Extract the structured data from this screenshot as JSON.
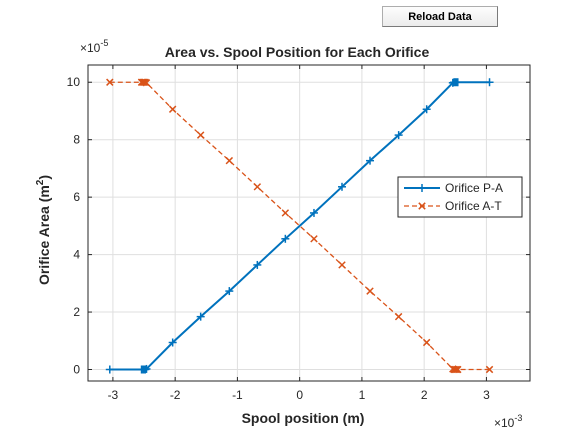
{
  "toolbar": {
    "reload_label": "Reload Data"
  },
  "chart_data": {
    "type": "line",
    "title": "Area vs. Spool Position for Each Orifice",
    "xlabel": "Spool position (m)",
    "ylabel": "Orifice Area (m",
    "ylabel_sup": "2",
    "ylabel_close": ")",
    "x_exponent": {
      "base": "×10",
      "power": "-3"
    },
    "y_exponent": {
      "base": "×10",
      "power": "-5"
    },
    "xlim": [
      -0.0034,
      0.0037
    ],
    "ylim": [
      -4e-06,
      0.000106
    ],
    "xticks": [
      -0.003,
      -0.002,
      -0.001,
      0,
      0.001,
      0.002,
      0.003
    ],
    "xtick_labels": [
      "-3",
      "-2",
      "-1",
      "0",
      "1",
      "2",
      "3"
    ],
    "yticks": [
      0,
      2e-05,
      4e-05,
      6e-05,
      8e-05,
      0.0001
    ],
    "ytick_labels": [
      "0",
      "2",
      "4",
      "6",
      "8",
      "10"
    ],
    "grid": true,
    "legend_position": "right",
    "series": [
      {
        "name": "Orifice P-A",
        "color": "#0072bd",
        "line_style": "solid",
        "marker": "plus",
        "x": [
          -0.00305,
          -0.00254,
          -0.00252,
          -0.0025,
          -0.00248,
          -0.00246,
          -0.00204,
          -0.00159,
          -0.00113,
          -0.00068,
          -0.00023,
          0.00023,
          0.00068,
          0.00113,
          0.00159,
          0.00204,
          0.00246,
          0.00248,
          0.0025,
          0.00252,
          0.00254,
          0.00305
        ],
        "y": [
          0,
          0,
          0,
          0,
          0,
          2e-07,
          9.4e-06,
          1.84e-05,
          2.73e-05,
          3.64e-05,
          4.55e-05,
          5.45e-05,
          6.36e-05,
          7.27e-05,
          8.16e-05,
          9.06e-05,
          9.98e-05,
          0.0001,
          0.0001,
          0.0001,
          0.0001,
          0.0001
        ]
      },
      {
        "name": "Orifice A-T",
        "color": "#d95319",
        "line_style": "dashed",
        "marker": "x",
        "x": [
          -0.00305,
          -0.00254,
          -0.00252,
          -0.0025,
          -0.00248,
          -0.00246,
          -0.00204,
          -0.00159,
          -0.00113,
          -0.00068,
          -0.00023,
          0.00023,
          0.00068,
          0.00113,
          0.00159,
          0.00204,
          0.00246,
          0.00248,
          0.0025,
          0.00252,
          0.00254,
          0.00305
        ],
        "y": [
          0.0001,
          0.0001,
          0.0001,
          0.0001,
          0.0001,
          9.98e-05,
          9.06e-05,
          8.16e-05,
          7.27e-05,
          6.36e-05,
          5.45e-05,
          4.55e-05,
          3.64e-05,
          2.73e-05,
          1.84e-05,
          9.4e-06,
          2e-07,
          0,
          0,
          0,
          0,
          0
        ]
      }
    ]
  }
}
